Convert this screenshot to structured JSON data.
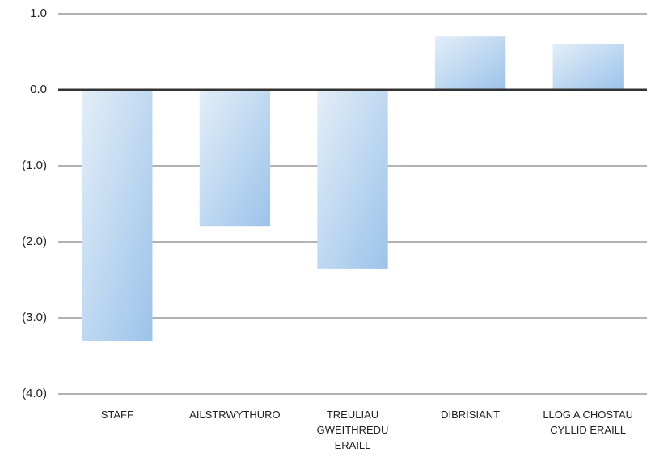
{
  "chart_data": {
    "type": "bar",
    "categories": [
      "STAFF",
      "AILSTRWYTHURO",
      "TREULIAU GWEITHREDU ERAILL",
      "DIBRISIANT",
      "LLOG A CHOSTAU CYLLID ERAILL"
    ],
    "values": [
      -3.3,
      -1.8,
      -2.35,
      0.7,
      0.6
    ],
    "color": "#9cc3ea",
    "ylim": [
      -4,
      1
    ],
    "yticks": [
      {
        "value": 1,
        "label": "1.0"
      },
      {
        "value": 0,
        "label": "0.0"
      },
      {
        "value": -1,
        "label": "(1.0)"
      },
      {
        "value": -2,
        "label": "(2.0)"
      },
      {
        "value": -3,
        "label": "(3.0)"
      },
      {
        "value": -4,
        "label": "(4.0)"
      }
    ],
    "grid": true
  }
}
